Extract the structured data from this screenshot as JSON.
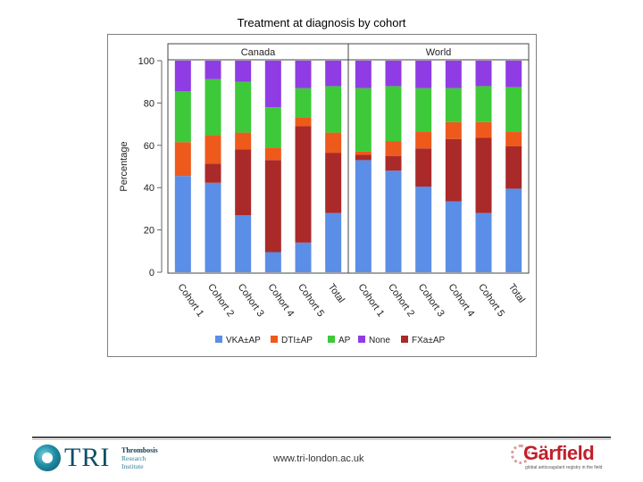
{
  "slide": {
    "title": "Treatment at diagnosis by cohort"
  },
  "chart_data": {
    "type": "bar",
    "stacked": true,
    "ylabel": "Percentage",
    "ylim": [
      0,
      100
    ],
    "yticks": [
      0,
      20,
      40,
      60,
      80,
      100
    ],
    "legend_position": "bottom",
    "series_colors": [
      "#5b8ee6",
      "#aa2a2a",
      "#ee5a1c",
      "#3ec93a",
      "#8f3ce4"
    ],
    "legend": [
      {
        "label": "VKA±AP",
        "color": "#5b8ee6"
      },
      {
        "label": "DTI±AP",
        "color": "#ee5a1c"
      },
      {
        "label": "AP",
        "color": "#3ec93a"
      },
      {
        "label": "None",
        "color": "#8f3ce4"
      },
      {
        "label": "FXa±AP",
        "color": "#aa2a2a"
      }
    ],
    "stack_order": [
      "VKA±AP",
      "FXa±AP",
      "DTI±AP",
      "AP",
      "None"
    ],
    "panels": [
      {
        "name": "Canada",
        "categories": [
          "Cohort 1",
          "Cohort 2",
          "Cohort 3",
          "Cohort 4",
          "Cohort 5",
          "Total"
        ],
        "series": [
          {
            "name": "VKA±AP",
            "values": [
              45.5,
              42.3,
              27,
              9.5,
              14,
              28
            ]
          },
          {
            "name": "FXa±AP",
            "values": [
              0,
              9,
              31,
              43.5,
              55,
              28.5
            ]
          },
          {
            "name": "DTI±AP",
            "values": [
              16,
              13.5,
              8,
              6,
              4,
              9.5
            ]
          },
          {
            "name": "AP",
            "values": [
              24,
              26.5,
              24,
              19,
              14,
              22
            ]
          },
          {
            "name": "None",
            "values": [
              14.5,
              8.7,
              10,
              22,
              13,
              12
            ]
          }
        ]
      },
      {
        "name": "World",
        "categories": [
          "Cohort 1",
          "Cohort 2",
          "Cohort 3",
          "Cohort 4",
          "Cohort 5",
          "Total"
        ],
        "series": [
          {
            "name": "VKA±AP",
            "values": [
              53,
              48,
              40.5,
              33.5,
              28,
              39.5
            ]
          },
          {
            "name": "FXa±AP",
            "values": [
              2.5,
              7,
              18,
              29.5,
              35.5,
              20
            ]
          },
          {
            "name": "DTI±AP",
            "values": [
              1.5,
              7,
              8,
              8,
              7.5,
              7
            ]
          },
          {
            "name": "AP",
            "values": [
              30,
              26,
              20.5,
              16,
              17,
              21
            ]
          },
          {
            "name": "None",
            "values": [
              13,
              12,
              13,
              13,
              12,
              12.5
            ]
          }
        ]
      }
    ]
  },
  "footer": {
    "url": "www.tri-london.ac.uk",
    "tri": {
      "wordmark": "TRI",
      "line1": "Thrombosis",
      "line2": "Research",
      "line3": "Institute"
    },
    "garfield": {
      "wordmark": "Gärfield",
      "tagline": "global anticoagulant registry in the field"
    }
  }
}
